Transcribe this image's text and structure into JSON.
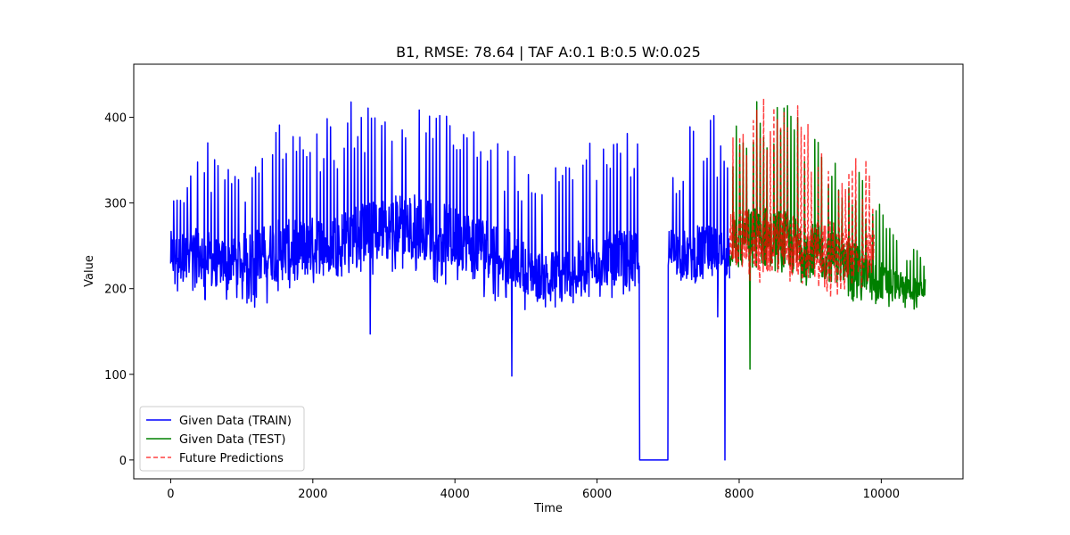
{
  "chart_data": {
    "type": "line",
    "title": "B1, RMSE: 78.64 | TAF A:0.1 B:0.5 W:0.025",
    "xlabel": "Time",
    "ylabel": "Value",
    "xlim": [
      -520,
      11150
    ],
    "ylim": [
      -22,
      462
    ],
    "xticks": [
      0,
      2000,
      4000,
      6000,
      8000,
      10000
    ],
    "yticks": [
      0,
      100,
      200,
      300,
      400
    ],
    "grid": false,
    "legend_position": "lower-left",
    "series": [
      {
        "name": "Given Data (TRAIN)",
        "color": "#0000ff",
        "style": "solid",
        "x_start": 0,
        "x_end": 7870,
        "envelope": {
          "x": [
            0,
            100,
            300,
            500,
            700,
            1000,
            1200,
            1500,
            1800,
            2000,
            2300,
            2600,
            2800,
            3000,
            3200,
            3400,
            3600,
            3800,
            4000,
            4200,
            4400,
            4600,
            4800,
            5000,
            5200,
            5400,
            5600,
            5800,
            6000,
            6200,
            6400,
            6580,
            6800,
            7000,
            7200,
            7400,
            7600,
            7870
          ],
          "max": [
            330,
            345,
            360,
            375,
            340,
            350,
            345,
            400,
            395,
            398,
            405,
            425,
            425,
            420,
            425,
            440,
            420,
            410,
            405,
            400,
            395,
            385,
            360,
            345,
            330,
            350,
            350,
            375,
            380,
            365,
            385,
            380,
            380,
            350,
            375,
            405,
            405,
            400
          ],
          "mid": [
            240,
            235,
            240,
            235,
            230,
            235,
            240,
            245,
            245,
            250,
            255,
            265,
            265,
            270,
            275,
            275,
            270,
            265,
            260,
            255,
            250,
            245,
            235,
            225,
            215,
            215,
            220,
            225,
            235,
            235,
            235,
            235,
            245,
            245,
            240,
            240,
            240,
            240
          ],
          "min": [
            175,
            180,
            185,
            180,
            185,
            180,
            175,
            190,
            195,
            200,
            210,
            220,
            215,
            215,
            215,
            220,
            210,
            205,
            200,
            195,
            190,
            185,
            180,
            175,
            170,
            175,
            175,
            185,
            185,
            185,
            195,
            195,
            205,
            205,
            210,
            210,
            215,
            220
          ]
        },
        "gaps": [
          {
            "x_start": 6600,
            "x_end": 7000,
            "value": 0
          }
        ],
        "spikes": [
          {
            "x": 2810,
            "value": 147
          },
          {
            "x": 4800,
            "value": 98
          },
          {
            "x": 7800,
            "value": 0
          },
          {
            "x": 7700,
            "value": 167
          }
        ]
      },
      {
        "name": "Given Data (TEST)",
        "color": "#008000",
        "style": "solid",
        "x_start": 7870,
        "x_end": 10620,
        "envelope": {
          "x": [
            7870,
            8000,
            8200,
            8400,
            8600,
            8800,
            9000,
            9200,
            9400,
            9600,
            9800,
            10000,
            10200,
            10400,
            10620
          ],
          "max": [
            395,
            425,
            425,
            425,
            420,
            410,
            385,
            375,
            355,
            350,
            330,
            300,
            275,
            250,
            240
          ],
          "mid": [
            250,
            255,
            260,
            260,
            255,
            250,
            245,
            240,
            235,
            225,
            215,
            210,
            205,
            200,
            200
          ],
          "min": [
            225,
            220,
            220,
            215,
            210,
            205,
            200,
            195,
            190,
            185,
            180,
            175,
            175,
            175,
            175
          ]
        },
        "spikes": [
          {
            "x": 8150,
            "value": 106
          }
        ]
      },
      {
        "name": "Future Predictions",
        "color": "#ff0000",
        "style": "dashed",
        "opacity": 0.75,
        "x_start": 7870,
        "x_end": 9900,
        "envelope": {
          "x": [
            7870,
            8000,
            8200,
            8400,
            8600,
            8800,
            9000,
            9200,
            9400,
            9600,
            9800,
            9900
          ],
          "max": [
            380,
            400,
            415,
            425,
            415,
            420,
            395,
            385,
            370,
            355,
            355,
            300
          ],
          "mid": [
            260,
            260,
            255,
            255,
            255,
            250,
            250,
            245,
            245,
            240,
            240,
            250
          ],
          "min": [
            225,
            215,
            205,
            205,
            210,
            200,
            195,
            190,
            190,
            195,
            200,
            220
          ]
        }
      }
    ]
  }
}
